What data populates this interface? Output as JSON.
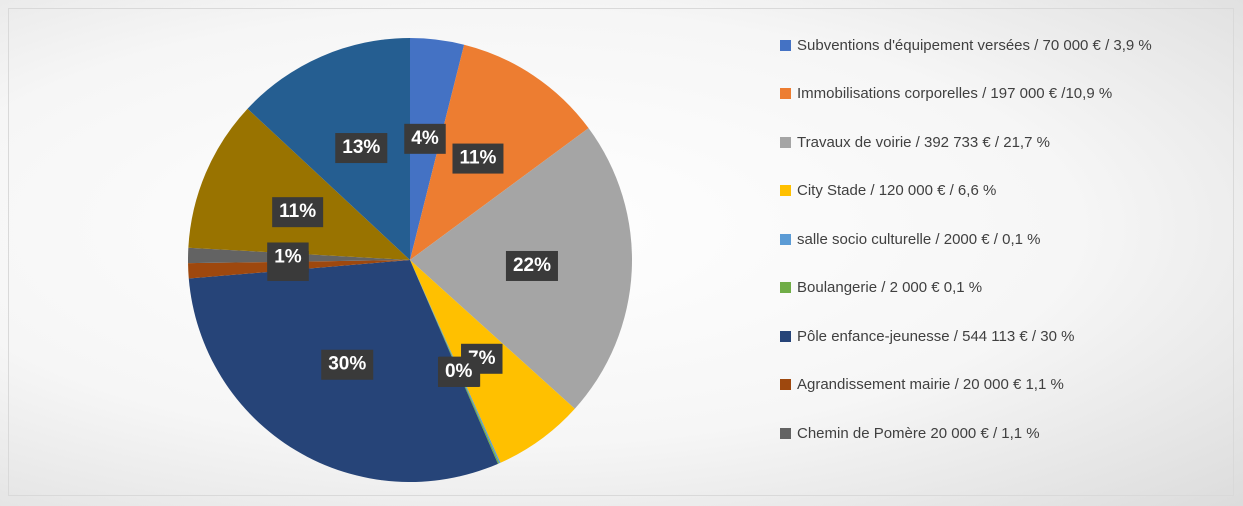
{
  "chart_data": {
    "type": "pie",
    "categories": [
      "Subventions d'équipement versées / 70 000 € / 3,9 %",
      "Immobilisations corporelles / 197 000 € /10,9 %",
      "Travaux de voirie / 392 733 € / 21,7 %",
      "City Stade / 120 000 € / 6,6 %",
      "salle socio culturelle / 2000 € / 0,1 %",
      "Boulangerie / 2 000 € 0,1 %",
      "Pôle enfance-jeunesse / 544 113 € / 30 %",
      "Agrandissement mairie / 20 000 € 1,1 %",
      "Chemin de Pomère 20 000 € / 1,1 %",
      null,
      null
    ],
    "values": [
      3.9,
      10.9,
      21.7,
      6.6,
      0.1,
      0.1,
      30,
      1.1,
      1.1,
      11,
      13
    ],
    "value_labels": [
      "4%",
      "11%",
      "22%",
      "7%",
      "0%",
      "0%",
      "30%",
      "1%",
      "1%",
      "11%",
      "13%"
    ],
    "colors": [
      "#4472c4",
      "#ed7d31",
      "#a5a5a5",
      "#ffc000",
      "#5b9bd5",
      "#70ad47",
      "#264478",
      "#9e480e",
      "#636363",
      "#997300",
      "#255e91"
    ],
    "legend": "right"
  }
}
